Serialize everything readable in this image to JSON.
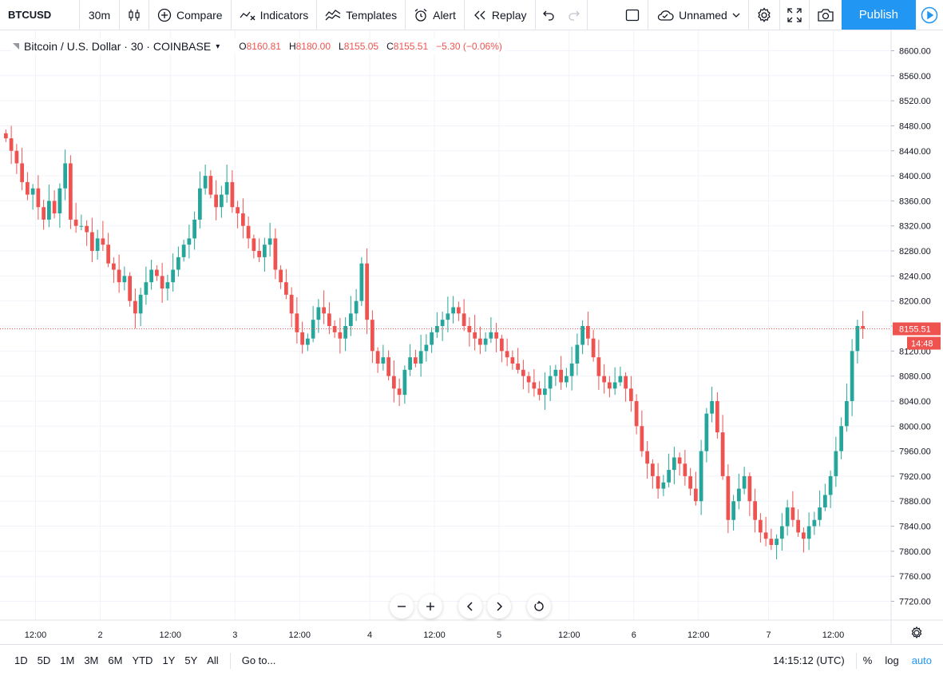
{
  "toolbar": {
    "symbol": "BTCUSD",
    "interval": "30m",
    "compare": "Compare",
    "indicators": "Indicators",
    "templates": "Templates",
    "alert": "Alert",
    "replay": "Replay",
    "layout_name": "Unnamed",
    "publish": "Publish"
  },
  "legend": {
    "title": "Bitcoin / U.S. Dollar · 30 · COINBASE",
    "open": "8160.81",
    "high": "8180.00",
    "low": "8155.05",
    "close": "8155.51",
    "change": "−5.30 (−0.06%)"
  },
  "colors": {
    "up": "#26a69a",
    "down": "#ef5350",
    "accent": "#2196f3",
    "grid": "#f0f3fa"
  },
  "chart_data": {
    "type": "candlestick",
    "ylim": [
      7690,
      8630
    ],
    "y_ticks": [
      "8600.00",
      "8560.00",
      "8520.00",
      "8480.00",
      "8440.00",
      "8400.00",
      "8360.00",
      "8320.00",
      "8280.00",
      "8240.00",
      "8200.00",
      "8160.00",
      "8120.00",
      "8080.00",
      "8040.00",
      "8000.00",
      "7960.00",
      "7920.00",
      "7880.00",
      "7840.00",
      "7800.00",
      "7760.00",
      "7720.00"
    ],
    "x_ticks": [
      "12:00",
      "2",
      "12:00",
      "3",
      "12:00",
      "4",
      "12:00",
      "5",
      "12:00",
      "6",
      "12:00",
      "7",
      "12:00"
    ],
    "last_price": "8155.51",
    "countdown": "14:48",
    "closes": [
      8460,
      8440,
      8420,
      8390,
      8370,
      8380,
      8350,
      8330,
      8360,
      8340,
      8380,
      8420,
      8330,
      8320,
      8320,
      8310,
      8280,
      8300,
      8290,
      8260,
      8250,
      8230,
      8240,
      8200,
      8180,
      8210,
      8230,
      8250,
      8240,
      8220,
      8230,
      8250,
      8270,
      8290,
      8300,
      8330,
      8380,
      8400,
      8370,
      8350,
      8370,
      8390,
      8350,
      8340,
      8320,
      8300,
      8280,
      8270,
      8290,
      8300,
      8250,
      8230,
      8210,
      8180,
      8150,
      8130,
      8140,
      8170,
      8190,
      8180,
      8160,
      8150,
      8140,
      8160,
      8180,
      8200,
      8260,
      8170,
      8120,
      8100,
      8110,
      8080,
      8060,
      8050,
      8090,
      8110,
      8100,
      8120,
      8130,
      8150,
      8160,
      8170,
      8180,
      8190,
      8180,
      8160,
      8150,
      8140,
      8130,
      8140,
      8150,
      8140,
      8120,
      8110,
      8100,
      8090,
      8080,
      8070,
      8060,
      8050,
      8060,
      8080,
      8090,
      8070,
      8080,
      8100,
      8130,
      8160,
      8140,
      8110,
      8080,
      8070,
      8060,
      8070,
      8080,
      8060,
      8040,
      8000,
      7960,
      7940,
      7920,
      7900,
      7910,
      7930,
      7950,
      7940,
      7920,
      7900,
      7880,
      7960,
      8020,
      8040,
      7990,
      7920,
      7850,
      7880,
      7900,
      7920,
      7880,
      7850,
      7830,
      7820,
      7810,
      7820,
      7840,
      7870,
      7850,
      7830,
      7820,
      7840,
      7850,
      7870,
      7890,
      7920,
      7960,
      8000,
      8040,
      8120,
      8160,
      8155.51
    ]
  },
  "nav": {
    "zoom_out_icon": "minus-icon",
    "zoom_in_icon": "plus-icon",
    "scroll_left_icon": "chevron-left-icon",
    "scroll_right_icon": "chevron-right-icon",
    "reset_icon": "reset-icon"
  },
  "bottom": {
    "ranges": [
      "1D",
      "5D",
      "1M",
      "3M",
      "6M",
      "YTD",
      "1Y",
      "5Y",
      "All"
    ],
    "goto": "Go to...",
    "clock": "14:15:12 (UTC)",
    "percent": "%",
    "log": "log",
    "auto": "auto"
  }
}
